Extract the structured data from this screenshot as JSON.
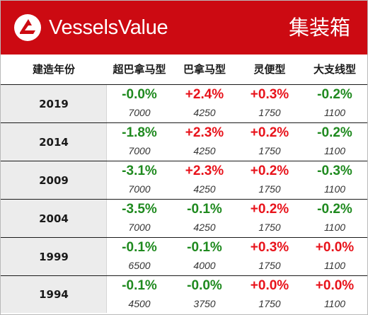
{
  "header": {
    "brand": "VesselsValue",
    "title": "集装箱",
    "colors": {
      "background": "#cc0a12",
      "text": "#ffffff"
    }
  },
  "columns": [
    "建造年份",
    "超巴拿马型",
    "巴拿马型",
    "灵便型",
    "大支线型"
  ],
  "colors": {
    "positive": "#e8131b",
    "negative": "#1f8a1f",
    "neutral_zero": "#1f8a1f"
  },
  "rows": [
    {
      "year": "2019",
      "cells": [
        {
          "pct": "-0.0%",
          "value": "7000",
          "tone": "green"
        },
        {
          "pct": "+2.4%",
          "value": "4250",
          "tone": "red"
        },
        {
          "pct": "+0.3%",
          "value": "1750",
          "tone": "red"
        },
        {
          "pct": "-0.2%",
          "value": "1100",
          "tone": "green"
        }
      ]
    },
    {
      "year": "2014",
      "cells": [
        {
          "pct": "-1.8%",
          "value": "7000",
          "tone": "green"
        },
        {
          "pct": "+2.3%",
          "value": "4250",
          "tone": "red"
        },
        {
          "pct": "+0.2%",
          "value": "1750",
          "tone": "red"
        },
        {
          "pct": "-0.2%",
          "value": "1100",
          "tone": "green"
        }
      ]
    },
    {
      "year": "2009",
      "cells": [
        {
          "pct": "-3.1%",
          "value": "7000",
          "tone": "green"
        },
        {
          "pct": "+2.3%",
          "value": "4250",
          "tone": "red"
        },
        {
          "pct": "+0.2%",
          "value": "1750",
          "tone": "red"
        },
        {
          "pct": "-0.3%",
          "value": "1100",
          "tone": "green"
        }
      ]
    },
    {
      "year": "2004",
      "cells": [
        {
          "pct": "-3.5%",
          "value": "7000",
          "tone": "green"
        },
        {
          "pct": "-0.1%",
          "value": "4250",
          "tone": "green"
        },
        {
          "pct": "+0.2%",
          "value": "1750",
          "tone": "red"
        },
        {
          "pct": "-0.2%",
          "value": "1100",
          "tone": "green"
        }
      ]
    },
    {
      "year": "1999",
      "cells": [
        {
          "pct": "-0.1%",
          "value": "6500",
          "tone": "green"
        },
        {
          "pct": "-0.1%",
          "value": "4000",
          "tone": "green"
        },
        {
          "pct": "+0.3%",
          "value": "1750",
          "tone": "red"
        },
        {
          "pct": "+0.0%",
          "value": "1100",
          "tone": "red"
        }
      ]
    },
    {
      "year": "1994",
      "cells": [
        {
          "pct": "-0.1%",
          "value": "4500",
          "tone": "green"
        },
        {
          "pct": "-0.0%",
          "value": "3750",
          "tone": "green"
        },
        {
          "pct": "+0.0%",
          "value": "1750",
          "tone": "red"
        },
        {
          "pct": "+0.0%",
          "value": "1100",
          "tone": "red"
        }
      ]
    }
  ]
}
